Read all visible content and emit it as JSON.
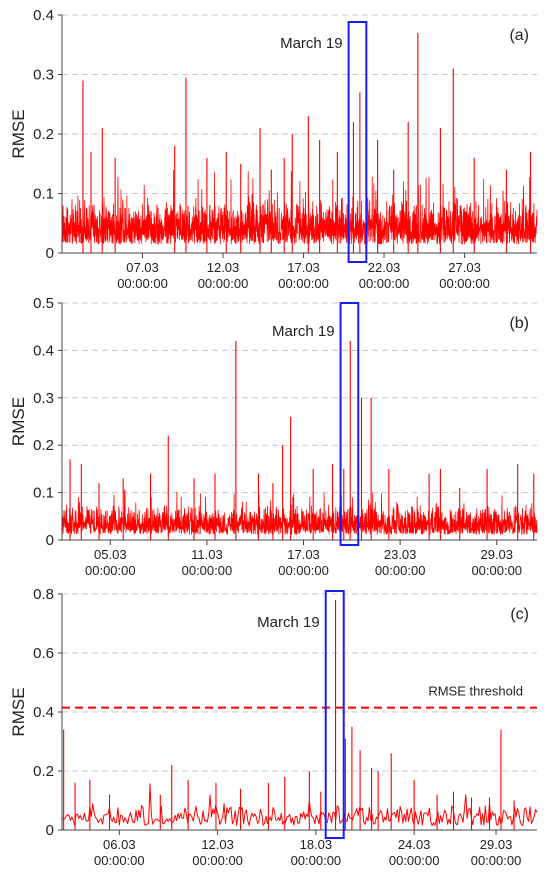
{
  "colors": {
    "series": "#ff0000",
    "highlight": "#1a1aff",
    "grid": "#c8c8c8",
    "axis": "#444444",
    "threshold": "#ff0000"
  },
  "chart_data": [
    {
      "type": "line",
      "panel_label": "(a)",
      "ylabel": "RMSE",
      "ylim": [
        0,
        0.4
      ],
      "yticks": [
        "0",
        "0.1",
        "0.2",
        "0.3",
        "0.4"
      ],
      "xlim": [
        2,
        31.5
      ],
      "xticks": [
        {
          "x": 7,
          "date": "07.03",
          "time": "00:00:00"
        },
        {
          "x": 12,
          "date": "12.03",
          "time": "00:00:00"
        },
        {
          "x": 17,
          "date": "17.03",
          "time": "00:00:00"
        },
        {
          "x": 22,
          "date": "22.03",
          "time": "00:00:00"
        },
        {
          "x": 27,
          "date": "27.03",
          "time": "00:00:00"
        }
      ],
      "grid": true,
      "annotation": "March 19",
      "highlight_range": [
        19.8,
        20.9
      ],
      "peaks": [
        [
          3.3,
          0.29
        ],
        [
          3.8,
          0.17
        ],
        [
          4.5,
          0.21
        ],
        [
          5.3,
          0.16
        ],
        [
          9.0,
          0.18
        ],
        [
          9.7,
          0.295
        ],
        [
          11.0,
          0.16
        ],
        [
          12.2,
          0.17
        ],
        [
          13.1,
          0.15
        ],
        [
          14.3,
          0.21
        ],
        [
          15.0,
          0.14
        ],
        [
          15.8,
          0.16
        ],
        [
          16.3,
          0.2
        ],
        [
          17.3,
          0.23
        ],
        [
          18.0,
          0.19
        ],
        [
          19.1,
          0.17
        ],
        [
          20.1,
          0.22
        ],
        [
          20.5,
          0.27
        ],
        [
          20.9,
          0.2
        ],
        [
          21.6,
          0.19
        ],
        [
          22.6,
          0.14
        ],
        [
          23.5,
          0.22
        ],
        [
          24.1,
          0.37
        ],
        [
          25.5,
          0.21
        ],
        [
          26.3,
          0.31
        ],
        [
          27.6,
          0.16
        ],
        [
          29.6,
          0.14
        ],
        [
          31.1,
          0.17
        ]
      ],
      "noise": {
        "baseline": 0.05,
        "spread": 0.05,
        "samples": 2600
      }
    },
    {
      "type": "line",
      "panel_label": "(b)",
      "ylabel": "RMSE",
      "ylim": [
        0,
        0.5
      ],
      "yticks": [
        "0",
        "0.1",
        "0.2",
        "0.3",
        "0.4",
        "0.5"
      ],
      "xlim": [
        2,
        31.5
      ],
      "xticks": [
        {
          "x": 5,
          "date": "05.03",
          "time": "00:00:00"
        },
        {
          "x": 11,
          "date": "11.03",
          "time": "00:00:00"
        },
        {
          "x": 17,
          "date": "17.03",
          "time": "00:00:00"
        },
        {
          "x": 23,
          "date": "23.03",
          "time": "00:00:00"
        },
        {
          "x": 29,
          "date": "29.03",
          "time": "00:00:00"
        }
      ],
      "grid": true,
      "annotation": "March 19",
      "highlight_range": [
        19.3,
        20.4
      ],
      "peaks": [
        [
          2.5,
          0.17
        ],
        [
          3.2,
          0.16
        ],
        [
          4.3,
          0.12
        ],
        [
          5.8,
          0.13
        ],
        [
          7.5,
          0.14
        ],
        [
          8.6,
          0.22
        ],
        [
          10.2,
          0.13
        ],
        [
          11.5,
          0.14
        ],
        [
          12.8,
          0.42
        ],
        [
          14.2,
          0.14
        ],
        [
          15.1,
          0.12
        ],
        [
          15.7,
          0.2
        ],
        [
          16.2,
          0.26
        ],
        [
          17.6,
          0.15
        ],
        [
          18.8,
          0.16
        ],
        [
          19.5,
          0.15
        ],
        [
          19.9,
          0.42
        ],
        [
          20.6,
          0.3
        ],
        [
          21.2,
          0.3
        ],
        [
          22.3,
          0.15
        ],
        [
          24.8,
          0.14
        ],
        [
          25.5,
          0.15
        ],
        [
          26.7,
          0.11
        ],
        [
          28.4,
          0.15
        ],
        [
          30.3,
          0.16
        ],
        [
          31.3,
          0.14
        ]
      ],
      "noise": {
        "baseline": 0.04,
        "spread": 0.04,
        "samples": 2200
      }
    },
    {
      "type": "line",
      "panel_label": "(c)",
      "ylabel": "RMSE",
      "ylim": [
        0,
        0.8
      ],
      "yticks": [
        "0",
        "0.2",
        "0.4",
        "0.6",
        "0.8"
      ],
      "xlim": [
        2.5,
        31.5
      ],
      "xticks": [
        {
          "x": 6,
          "date": "06.03",
          "time": "00:00:00"
        },
        {
          "x": 12,
          "date": "12.03",
          "time": "00:00:00"
        },
        {
          "x": 18,
          "date": "18.03",
          "time": "00:00:00"
        },
        {
          "x": 24,
          "date": "24.03",
          "time": "00:00:00"
        },
        {
          "x": 29,
          "date": "29.03",
          "time": "00:00:00"
        }
      ],
      "grid": true,
      "annotation": "March 19",
      "highlight_range": [
        18.6,
        19.7
      ],
      "threshold": {
        "value": 0.415,
        "label": "RMSE threshold"
      },
      "peaks": [
        [
          2.6,
          0.34
        ],
        [
          3.3,
          0.16
        ],
        [
          4.2,
          0.17
        ],
        [
          5.4,
          0.12
        ],
        [
          8.5,
          0.12
        ],
        [
          9.2,
          0.22
        ],
        [
          10.2,
          0.17
        ],
        [
          11.9,
          0.16
        ],
        [
          13.4,
          0.14
        ],
        [
          15.1,
          0.16
        ],
        [
          16.1,
          0.18
        ],
        [
          17.6,
          0.2
        ],
        [
          18.3,
          0.13
        ],
        [
          19.2,
          0.78
        ],
        [
          19.8,
          0.31
        ],
        [
          20.2,
          0.35
        ],
        [
          20.7,
          0.27
        ],
        [
          21.4,
          0.21
        ],
        [
          21.8,
          0.2
        ],
        [
          22.6,
          0.26
        ],
        [
          24.0,
          0.17
        ],
        [
          25.4,
          0.12
        ],
        [
          26.4,
          0.13
        ],
        [
          27.5,
          0.11
        ],
        [
          28.6,
          0.11
        ],
        [
          29.3,
          0.34
        ],
        [
          30.1,
          0.1
        ]
      ],
      "noise": {
        "baseline": 0.05,
        "spread": 0.05,
        "samples": 340
      }
    }
  ]
}
